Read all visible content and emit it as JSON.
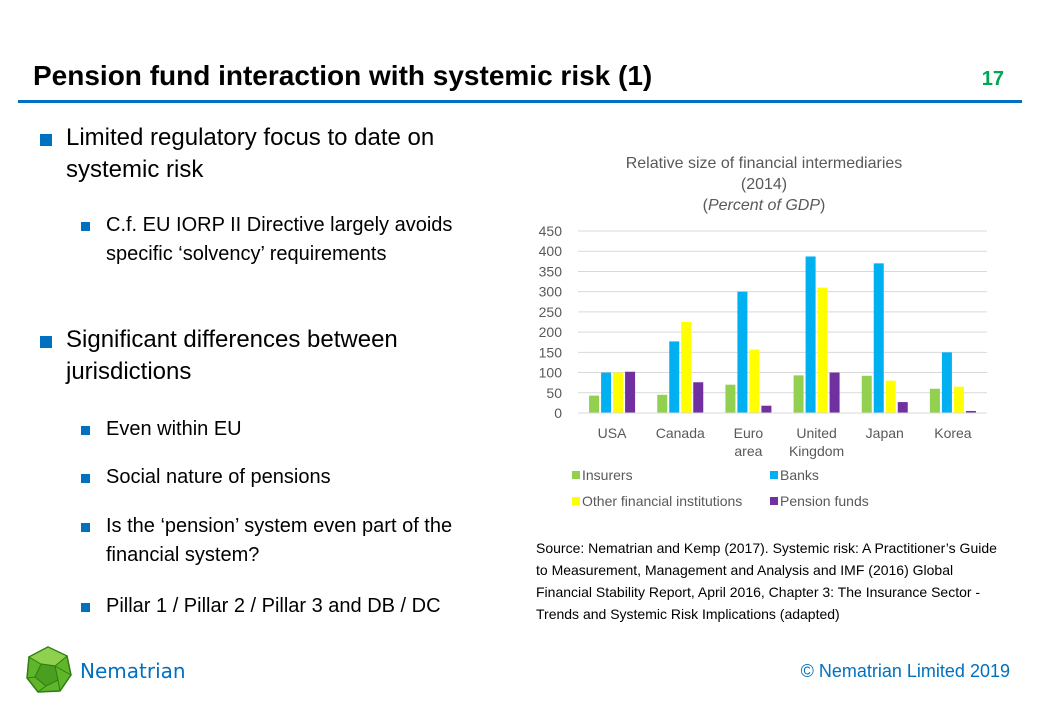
{
  "slide": {
    "title": "Pension fund interaction with systemic risk (1)",
    "number": "17"
  },
  "bullets": [
    {
      "level": 1,
      "text": "Limited regulatory focus to date on systemic risk"
    },
    {
      "level": 2,
      "text": "C.f. EU IORP II Directive largely avoids specific ‘solvency’ requirements"
    },
    {
      "level": 1,
      "text": "Significant differences between jurisdictions"
    },
    {
      "level": 2,
      "text": "Even within EU"
    },
    {
      "level": 2,
      "text": "Social nature of pensions"
    },
    {
      "level": 2,
      "text": "Is the ‘pension’ system even part of the financial system?"
    },
    {
      "level": 2,
      "text": "Pillar 1 / Pillar 2 / Pillar 3 and DB / DC"
    }
  ],
  "chart_data": {
    "type": "bar",
    "title_line1": "Relative size of financial intermediaries",
    "title_line2": "(2014)",
    "title_line3": "Percent of GDP",
    "categories": [
      [
        "USA"
      ],
      [
        "Canada"
      ],
      [
        "Euro",
        "area"
      ],
      [
        "United",
        "Kingdom"
      ],
      [
        "Japan"
      ],
      [
        "Korea"
      ]
    ],
    "series": [
      {
        "name": "Insurers",
        "color": "#92d050",
        "values": [
          43,
          45,
          70,
          93,
          92,
          60
        ]
      },
      {
        "name": "Banks",
        "color": "#00b0f0",
        "values": [
          100,
          177,
          300,
          387,
          370,
          150
        ]
      },
      {
        "name": "Other financial institutions",
        "color": "#ffff00",
        "values": [
          100,
          225,
          157,
          310,
          80,
          65
        ]
      },
      {
        "name": "Pension funds",
        "color": "#7030a0",
        "values": [
          102,
          76,
          18,
          100,
          27,
          5
        ]
      }
    ],
    "yticks": [
      "0",
      "50",
      "100",
      "150",
      "200",
      "250",
      "300",
      "350",
      "400",
      "450"
    ],
    "ylim": [
      0,
      450
    ],
    "grid": true,
    "legend_position": "bottom"
  },
  "source": "Source: Nematrian and Kemp (2017).  Systemic risk: A Practitioner’s Guide to Measurement, Management and Analysis and IMF (2016) Global Financial Stability Report, April 2016, Chapter 3: The Insurance Sector - Trends and Systemic Risk Implications (adapted)",
  "footer": {
    "brand": "Nematrian",
    "copyright": "© Nematrian Limited 2019"
  }
}
